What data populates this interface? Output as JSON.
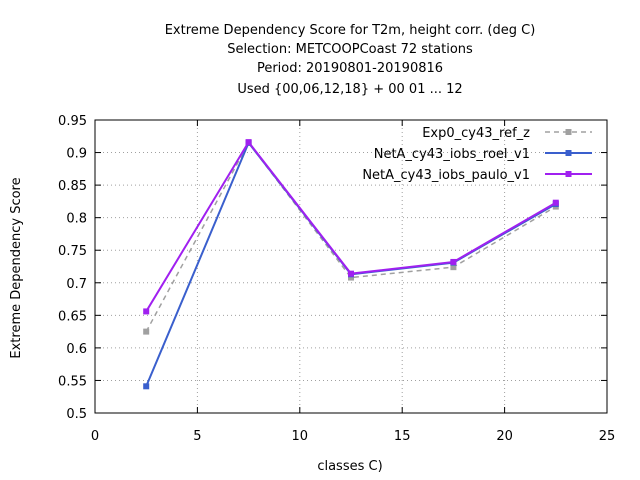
{
  "chart_data": {
    "type": "line",
    "title_lines": [
      "Extreme Dependency Score  for T2m, height corr. (deg C)",
      "Selection: METCOOPCoast     72 stations",
      "Period: 20190801-20190816",
      "Used {00,06,12,18} + 00 01 ... 12"
    ],
    "xlabel": "classes C)",
    "ylabel": "Extreme Dependency Score",
    "xlim": [
      0,
      25
    ],
    "ylim": [
      0.5,
      0.95
    ],
    "x_ticks": [
      "0",
      "5",
      "10",
      "15",
      "20",
      "25"
    ],
    "y_ticks": [
      "0.5",
      "0.55",
      "0.6",
      "0.65",
      "0.7",
      "0.75",
      "0.8",
      "0.85",
      "0.9",
      "0.95"
    ],
    "grid": true,
    "legend_position": "top-right",
    "x": [
      2.5,
      7.5,
      12.5,
      17.5,
      22.5
    ],
    "series": [
      {
        "name": "Exp0_cy43_ref_z",
        "color": "#a0a0a0",
        "dashed": true,
        "values": [
          0.625,
          0.915,
          0.708,
          0.724,
          0.817
        ]
      },
      {
        "name": "NetA_cy43_iobs_roel_v1",
        "color": "#3a5fcd",
        "dashed": false,
        "values": [
          0.541,
          0.915,
          0.713,
          0.731,
          0.821
        ]
      },
      {
        "name": "NetA_cy43_iobs_paulo_v1",
        "color": "#a020f0",
        "dashed": false,
        "values": [
          0.656,
          0.916,
          0.714,
          0.732,
          0.823
        ]
      }
    ]
  }
}
